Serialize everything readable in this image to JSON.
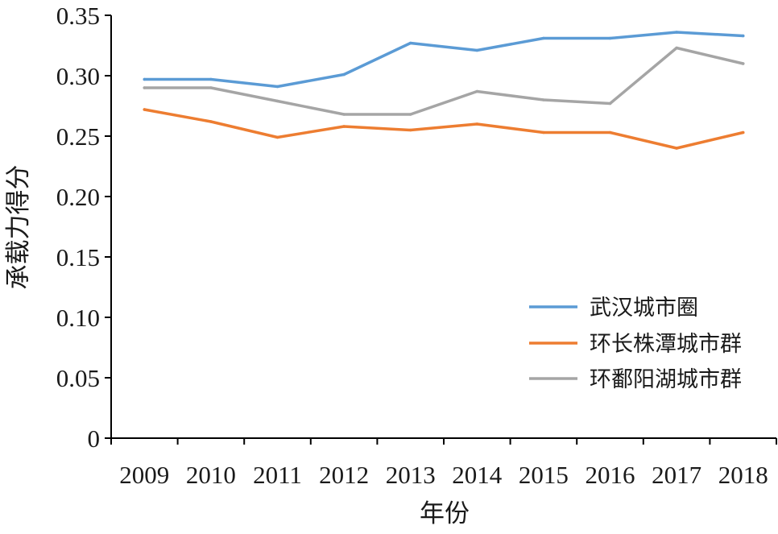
{
  "chart_data": {
    "type": "line",
    "title": "",
    "xlabel": "年份",
    "ylabel": "承载力得分",
    "categories": [
      "2009",
      "2010",
      "2011",
      "2012",
      "2013",
      "2014",
      "2015",
      "2016",
      "2017",
      "2018"
    ],
    "ylim": [
      0,
      0.35
    ],
    "yticks": [
      0,
      0.05,
      0.1,
      0.15,
      0.2,
      0.25,
      0.3,
      0.35
    ],
    "ytick_labels": [
      "0",
      "0.05",
      "0.10",
      "0.15",
      "0.20",
      "0.25",
      "0.30",
      "0.35"
    ],
    "grid": false,
    "legend_position": "right, lower-middle inside plot",
    "series": [
      {
        "name": "武汉城市圈",
        "color": "#5b9bd5",
        "values": [
          0.297,
          0.297,
          0.291,
          0.301,
          0.327,
          0.321,
          0.331,
          0.331,
          0.336,
          0.333
        ]
      },
      {
        "name": "环长株潭城市群",
        "color": "#ed7d31",
        "values": [
          0.272,
          0.262,
          0.249,
          0.258,
          0.255,
          0.26,
          0.253,
          0.253,
          0.24,
          0.253
        ]
      },
      {
        "name": "环鄱阳湖城市群",
        "color": "#a5a5a5",
        "values": [
          0.29,
          0.29,
          0.279,
          0.268,
          0.268,
          0.287,
          0.28,
          0.277,
          0.323,
          0.31
        ]
      }
    ]
  }
}
